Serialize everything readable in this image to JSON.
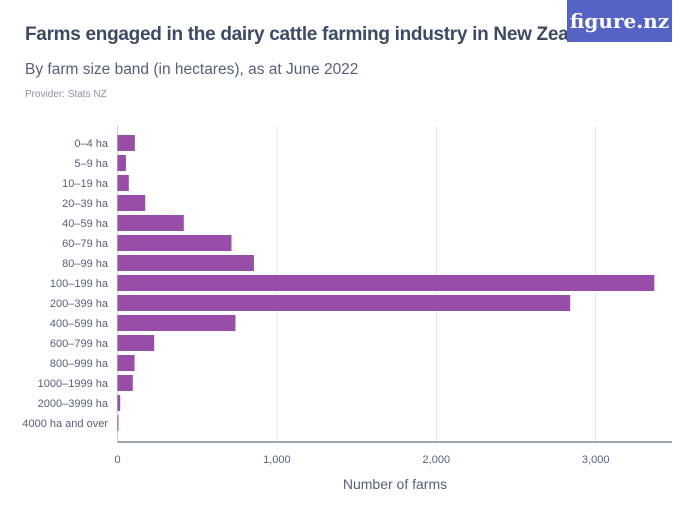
{
  "header": {
    "title": "Farms engaged in the dairy cattle farming industry in New Zealand",
    "subtitle": "By farm size band (in hectares), as at June 2022",
    "provider": "Provider: Stats NZ",
    "logo": "figure.nz"
  },
  "chart_data": {
    "type": "bar",
    "orientation": "horizontal",
    "categories": [
      "0–4 ha",
      "5–9 ha",
      "10–19 ha",
      "20–39 ha",
      "40–59 ha",
      "60–79 ha",
      "80–99 ha",
      "100–199 ha",
      "200–399 ha",
      "400–599 ha",
      "600–799 ha",
      "800–999 ha",
      "1000–1999 ha",
      "2000–3999 ha",
      "4000 ha and over"
    ],
    "values": [
      109,
      53,
      71,
      174,
      416,
      715,
      856,
      3368,
      2840,
      740,
      230,
      107,
      96,
      17,
      2
    ],
    "xlabel": "Number of farms",
    "xlim": [
      0,
      3500
    ],
    "xticks": [
      0,
      1000,
      2000,
      3000
    ],
    "xtick_labels": [
      "0",
      "1,000",
      "2,000",
      "3,000"
    ],
    "grid": true,
    "bar_color": "#984ea9",
    "logo_color": "#5463c4"
  }
}
